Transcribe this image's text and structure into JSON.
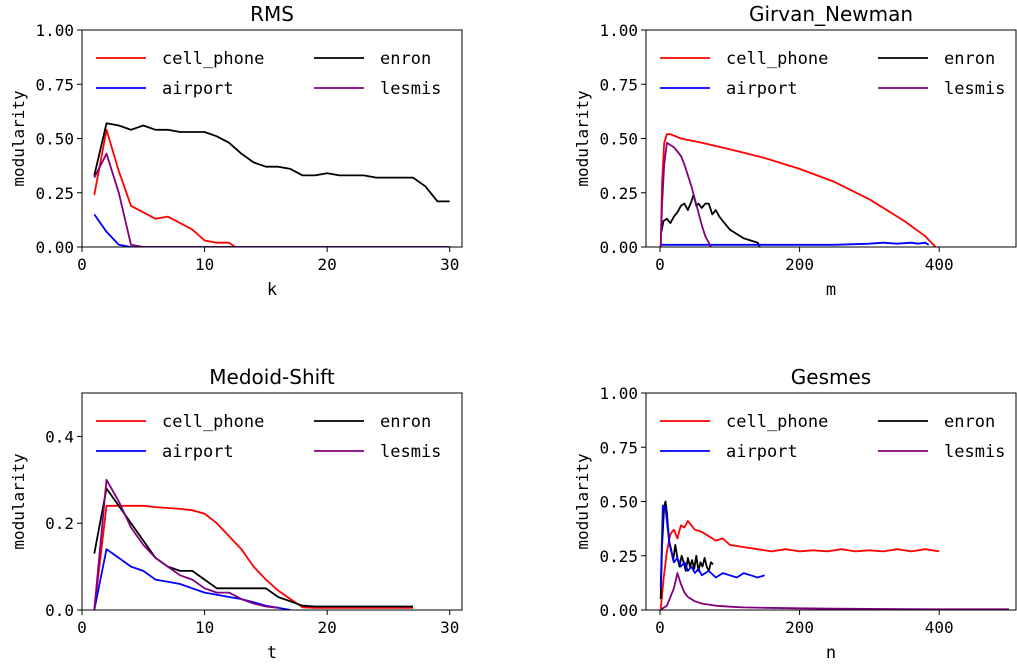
{
  "chart_data": [
    {
      "type": "line",
      "title": "RMS",
      "xlabel": "k",
      "ylabel": "modularity",
      "xlim": [
        0,
        31
      ],
      "ylim": [
        0,
        1.0
      ],
      "xticks": [
        "0",
        "10",
        "20",
        "30"
      ],
      "xtick_values": [
        0,
        10,
        20,
        30
      ],
      "yticks": [
        "0.00",
        "0.25",
        "0.50",
        "0.75",
        "1.00"
      ],
      "ytick_values": [
        0,
        0.25,
        0.5,
        0.75,
        1.0
      ],
      "legend": "top",
      "series": [
        {
          "name": "cell_phone",
          "color": "#ff0000",
          "x": [
            1,
            2,
            3,
            4,
            5,
            6,
            7,
            8,
            9,
            10,
            11,
            12,
            12.5
          ],
          "y": [
            0.24,
            0.54,
            0.35,
            0.19,
            0.16,
            0.13,
            0.14,
            0.11,
            0.08,
            0.03,
            0.02,
            0.02,
            0.0
          ]
        },
        {
          "name": "enron",
          "color": "#000000",
          "x": [
            1,
            2,
            3,
            4,
            5,
            6,
            7,
            8,
            9,
            10,
            11,
            12,
            13,
            14,
            15,
            16,
            17,
            18,
            19,
            20,
            21,
            22,
            23,
            24,
            25,
            26,
            27,
            28,
            29,
            30
          ],
          "y": [
            0.33,
            0.57,
            0.56,
            0.54,
            0.56,
            0.54,
            0.54,
            0.53,
            0.53,
            0.53,
            0.51,
            0.48,
            0.43,
            0.39,
            0.37,
            0.37,
            0.36,
            0.33,
            0.33,
            0.34,
            0.33,
            0.33,
            0.33,
            0.32,
            0.32,
            0.32,
            0.32,
            0.28,
            0.21,
            0.21
          ]
        },
        {
          "name": "airport",
          "color": "#0000ff",
          "x": [
            1,
            2,
            3,
            4,
            5,
            30
          ],
          "y": [
            0.15,
            0.07,
            0.01,
            0.0,
            0.0,
            0.0
          ]
        },
        {
          "name": "lesmis",
          "color": "#800080",
          "x": [
            1,
            2,
            3,
            4,
            5,
            30
          ],
          "y": [
            0.32,
            0.43,
            0.25,
            0.01,
            0.0,
            0.0
          ]
        }
      ]
    },
    {
      "type": "line",
      "title": "Girvan_Newman",
      "xlabel": "m",
      "ylabel": "modularity",
      "xlim": [
        -20,
        510
      ],
      "ylim": [
        0,
        1.0
      ],
      "xticks": [
        "0",
        "200",
        "400"
      ],
      "xtick_values": [
        0,
        200,
        400
      ],
      "yticks": [
        "0.00",
        "0.25",
        "0.50",
        "0.75",
        "1.00"
      ],
      "ytick_values": [
        0,
        0.25,
        0.5,
        0.75,
        1.0
      ],
      "legend": "top",
      "series": [
        {
          "name": "cell_phone",
          "color": "#ff0000",
          "x": [
            1,
            3,
            6,
            10,
            15,
            30,
            60,
            100,
            150,
            200,
            250,
            300,
            350,
            380,
            395
          ],
          "y": [
            0.0,
            0.3,
            0.48,
            0.52,
            0.52,
            0.5,
            0.48,
            0.45,
            0.41,
            0.36,
            0.3,
            0.22,
            0.12,
            0.05,
            0.0
          ]
        },
        {
          "name": "enron",
          "color": "#000000",
          "x": [
            2,
            5,
            10,
            15,
            20,
            25,
            30,
            35,
            40,
            45,
            48,
            52,
            55,
            60,
            65,
            70,
            75,
            80,
            85,
            90,
            95,
            100,
            110,
            120,
            130,
            140,
            143
          ],
          "y": [
            0.07,
            0.12,
            0.13,
            0.11,
            0.14,
            0.16,
            0.19,
            0.2,
            0.17,
            0.21,
            0.24,
            0.19,
            0.2,
            0.18,
            0.2,
            0.2,
            0.15,
            0.17,
            0.14,
            0.12,
            0.1,
            0.08,
            0.06,
            0.04,
            0.03,
            0.02,
            0.0
          ]
        },
        {
          "name": "airport",
          "color": "#0000ff",
          "x": [
            1,
            50,
            100,
            150,
            200,
            250,
            300,
            320,
            340,
            360,
            370,
            380,
            385
          ],
          "y": [
            0.01,
            0.01,
            0.01,
            0.01,
            0.01,
            0.01,
            0.015,
            0.02,
            0.015,
            0.02,
            0.015,
            0.02,
            0.01
          ]
        },
        {
          "name": "lesmis",
          "color": "#800080",
          "x": [
            1,
            3,
            6,
            10,
            15,
            20,
            25,
            30,
            35,
            40,
            45,
            50,
            55,
            60,
            65,
            70,
            73
          ],
          "y": [
            0.0,
            0.2,
            0.38,
            0.48,
            0.47,
            0.46,
            0.44,
            0.42,
            0.38,
            0.33,
            0.28,
            0.22,
            0.16,
            0.1,
            0.05,
            0.02,
            0.0
          ]
        }
      ]
    },
    {
      "type": "line",
      "title": "Medoid-Shift",
      "xlabel": "t",
      "ylabel": "modularity",
      "xlim": [
        0,
        31
      ],
      "ylim": [
        0,
        0.5
      ],
      "xticks": [
        "0",
        "10",
        "20",
        "30"
      ],
      "xtick_values": [
        0,
        10,
        20,
        30
      ],
      "yticks": [
        "0.0",
        "0.2",
        "0.4"
      ],
      "ytick_values": [
        0,
        0.2,
        0.4
      ],
      "legend": "top",
      "series": [
        {
          "name": "cell_phone",
          "color": "#ff0000",
          "x": [
            1,
            2,
            3,
            4,
            5,
            6,
            7,
            8,
            9,
            10,
            11,
            12,
            13,
            14,
            15,
            16,
            17,
            18,
            19,
            27
          ],
          "y": [
            0.0,
            0.24,
            0.24,
            0.24,
            0.24,
            0.237,
            0.235,
            0.233,
            0.23,
            0.222,
            0.2,
            0.17,
            0.14,
            0.1,
            0.07,
            0.045,
            0.025,
            0.006,
            0.005,
            0.005
          ]
        },
        {
          "name": "enron",
          "color": "#000000",
          "x": [
            1,
            2,
            3,
            4,
            5,
            6,
            7,
            8,
            9,
            10,
            11,
            12,
            13,
            14,
            15,
            16,
            17,
            18,
            19,
            20,
            21,
            27
          ],
          "y": [
            0.13,
            0.28,
            0.24,
            0.2,
            0.16,
            0.12,
            0.1,
            0.09,
            0.09,
            0.07,
            0.05,
            0.05,
            0.05,
            0.05,
            0.05,
            0.03,
            0.02,
            0.01,
            0.008,
            0.008,
            0.008,
            0.008
          ]
        },
        {
          "name": "airport",
          "color": "#0000ff",
          "x": [
            1,
            2,
            3,
            4,
            5,
            6,
            7,
            8,
            9,
            10,
            11,
            12,
            13,
            14,
            15,
            16,
            17
          ],
          "y": [
            0.0,
            0.14,
            0.12,
            0.1,
            0.09,
            0.07,
            0.065,
            0.06,
            0.05,
            0.04,
            0.035,
            0.03,
            0.025,
            0.018,
            0.01,
            0.005,
            0.0
          ]
        },
        {
          "name": "lesmis",
          "color": "#800080",
          "x": [
            1,
            2,
            3,
            4,
            5,
            6,
            7,
            8,
            9,
            10,
            11,
            12,
            13,
            14,
            15,
            16
          ],
          "y": [
            0.0,
            0.3,
            0.25,
            0.19,
            0.15,
            0.12,
            0.1,
            0.08,
            0.07,
            0.05,
            0.04,
            0.04,
            0.025,
            0.015,
            0.008,
            0.005
          ]
        }
      ]
    },
    {
      "type": "line",
      "title": "Gesmes",
      "xlabel": "n",
      "ylabel": "modularity",
      "xlim": [
        -20,
        510
      ],
      "ylim": [
        0,
        1.0
      ],
      "xticks": [
        "0",
        "200",
        "400"
      ],
      "xtick_values": [
        0,
        200,
        400
      ],
      "yticks": [
        "0.00",
        "0.25",
        "0.50",
        "0.75",
        "1.00"
      ],
      "ytick_values": [
        0,
        0.25,
        0.5,
        0.75,
        1.0
      ],
      "legend": "top",
      "series": [
        {
          "name": "cell_phone",
          "color": "#ff0000",
          "x": [
            1,
            5,
            10,
            15,
            20,
            25,
            30,
            35,
            40,
            50,
            60,
            70,
            80,
            90,
            100,
            120,
            140,
            160,
            180,
            200,
            220,
            240,
            260,
            280,
            300,
            320,
            340,
            360,
            380,
            400
          ],
          "y": [
            0.0,
            0.14,
            0.27,
            0.35,
            0.37,
            0.33,
            0.39,
            0.38,
            0.41,
            0.37,
            0.36,
            0.34,
            0.32,
            0.33,
            0.3,
            0.29,
            0.28,
            0.27,
            0.28,
            0.27,
            0.275,
            0.27,
            0.28,
            0.27,
            0.275,
            0.27,
            0.28,
            0.27,
            0.28,
            0.27
          ]
        },
        {
          "name": "enron",
          "color": "#000000",
          "x": [
            1,
            3,
            6,
            8,
            10,
            13,
            16,
            19,
            22,
            25,
            28,
            31,
            34,
            37,
            40,
            43,
            46,
            49,
            52,
            55,
            58,
            61,
            64,
            67,
            70,
            73,
            76
          ],
          "y": [
            0.05,
            0.3,
            0.48,
            0.5,
            0.45,
            0.32,
            0.28,
            0.23,
            0.3,
            0.24,
            0.2,
            0.25,
            0.22,
            0.18,
            0.24,
            0.2,
            0.23,
            0.19,
            0.25,
            0.18,
            0.22,
            0.2,
            0.24,
            0.2,
            0.18,
            0.22,
            0.21
          ]
        },
        {
          "name": "airport",
          "color": "#0000ff",
          "x": [
            1,
            4,
            8,
            11,
            14,
            17,
            20,
            25,
            30,
            35,
            40,
            45,
            50,
            55,
            60,
            70,
            80,
            90,
            100,
            110,
            120,
            130,
            140,
            150
          ],
          "y": [
            0.1,
            0.48,
            0.47,
            0.38,
            0.3,
            0.26,
            0.22,
            0.24,
            0.2,
            0.22,
            0.18,
            0.2,
            0.17,
            0.19,
            0.16,
            0.18,
            0.15,
            0.17,
            0.16,
            0.15,
            0.17,
            0.16,
            0.15,
            0.16
          ]
        },
        {
          "name": "lesmis",
          "color": "#800080",
          "x": [
            1,
            5,
            10,
            15,
            20,
            25,
            30,
            35,
            40,
            50,
            60,
            70,
            80,
            100,
            120,
            150,
            200,
            250,
            300,
            350,
            400,
            450,
            500
          ],
          "y": [
            0.0,
            0.01,
            0.02,
            0.06,
            0.1,
            0.17,
            0.12,
            0.08,
            0.06,
            0.04,
            0.03,
            0.025,
            0.02,
            0.015,
            0.012,
            0.01,
            0.008,
            0.006,
            0.005,
            0.004,
            0.003,
            0.003,
            0.003
          ]
        }
      ]
    }
  ]
}
